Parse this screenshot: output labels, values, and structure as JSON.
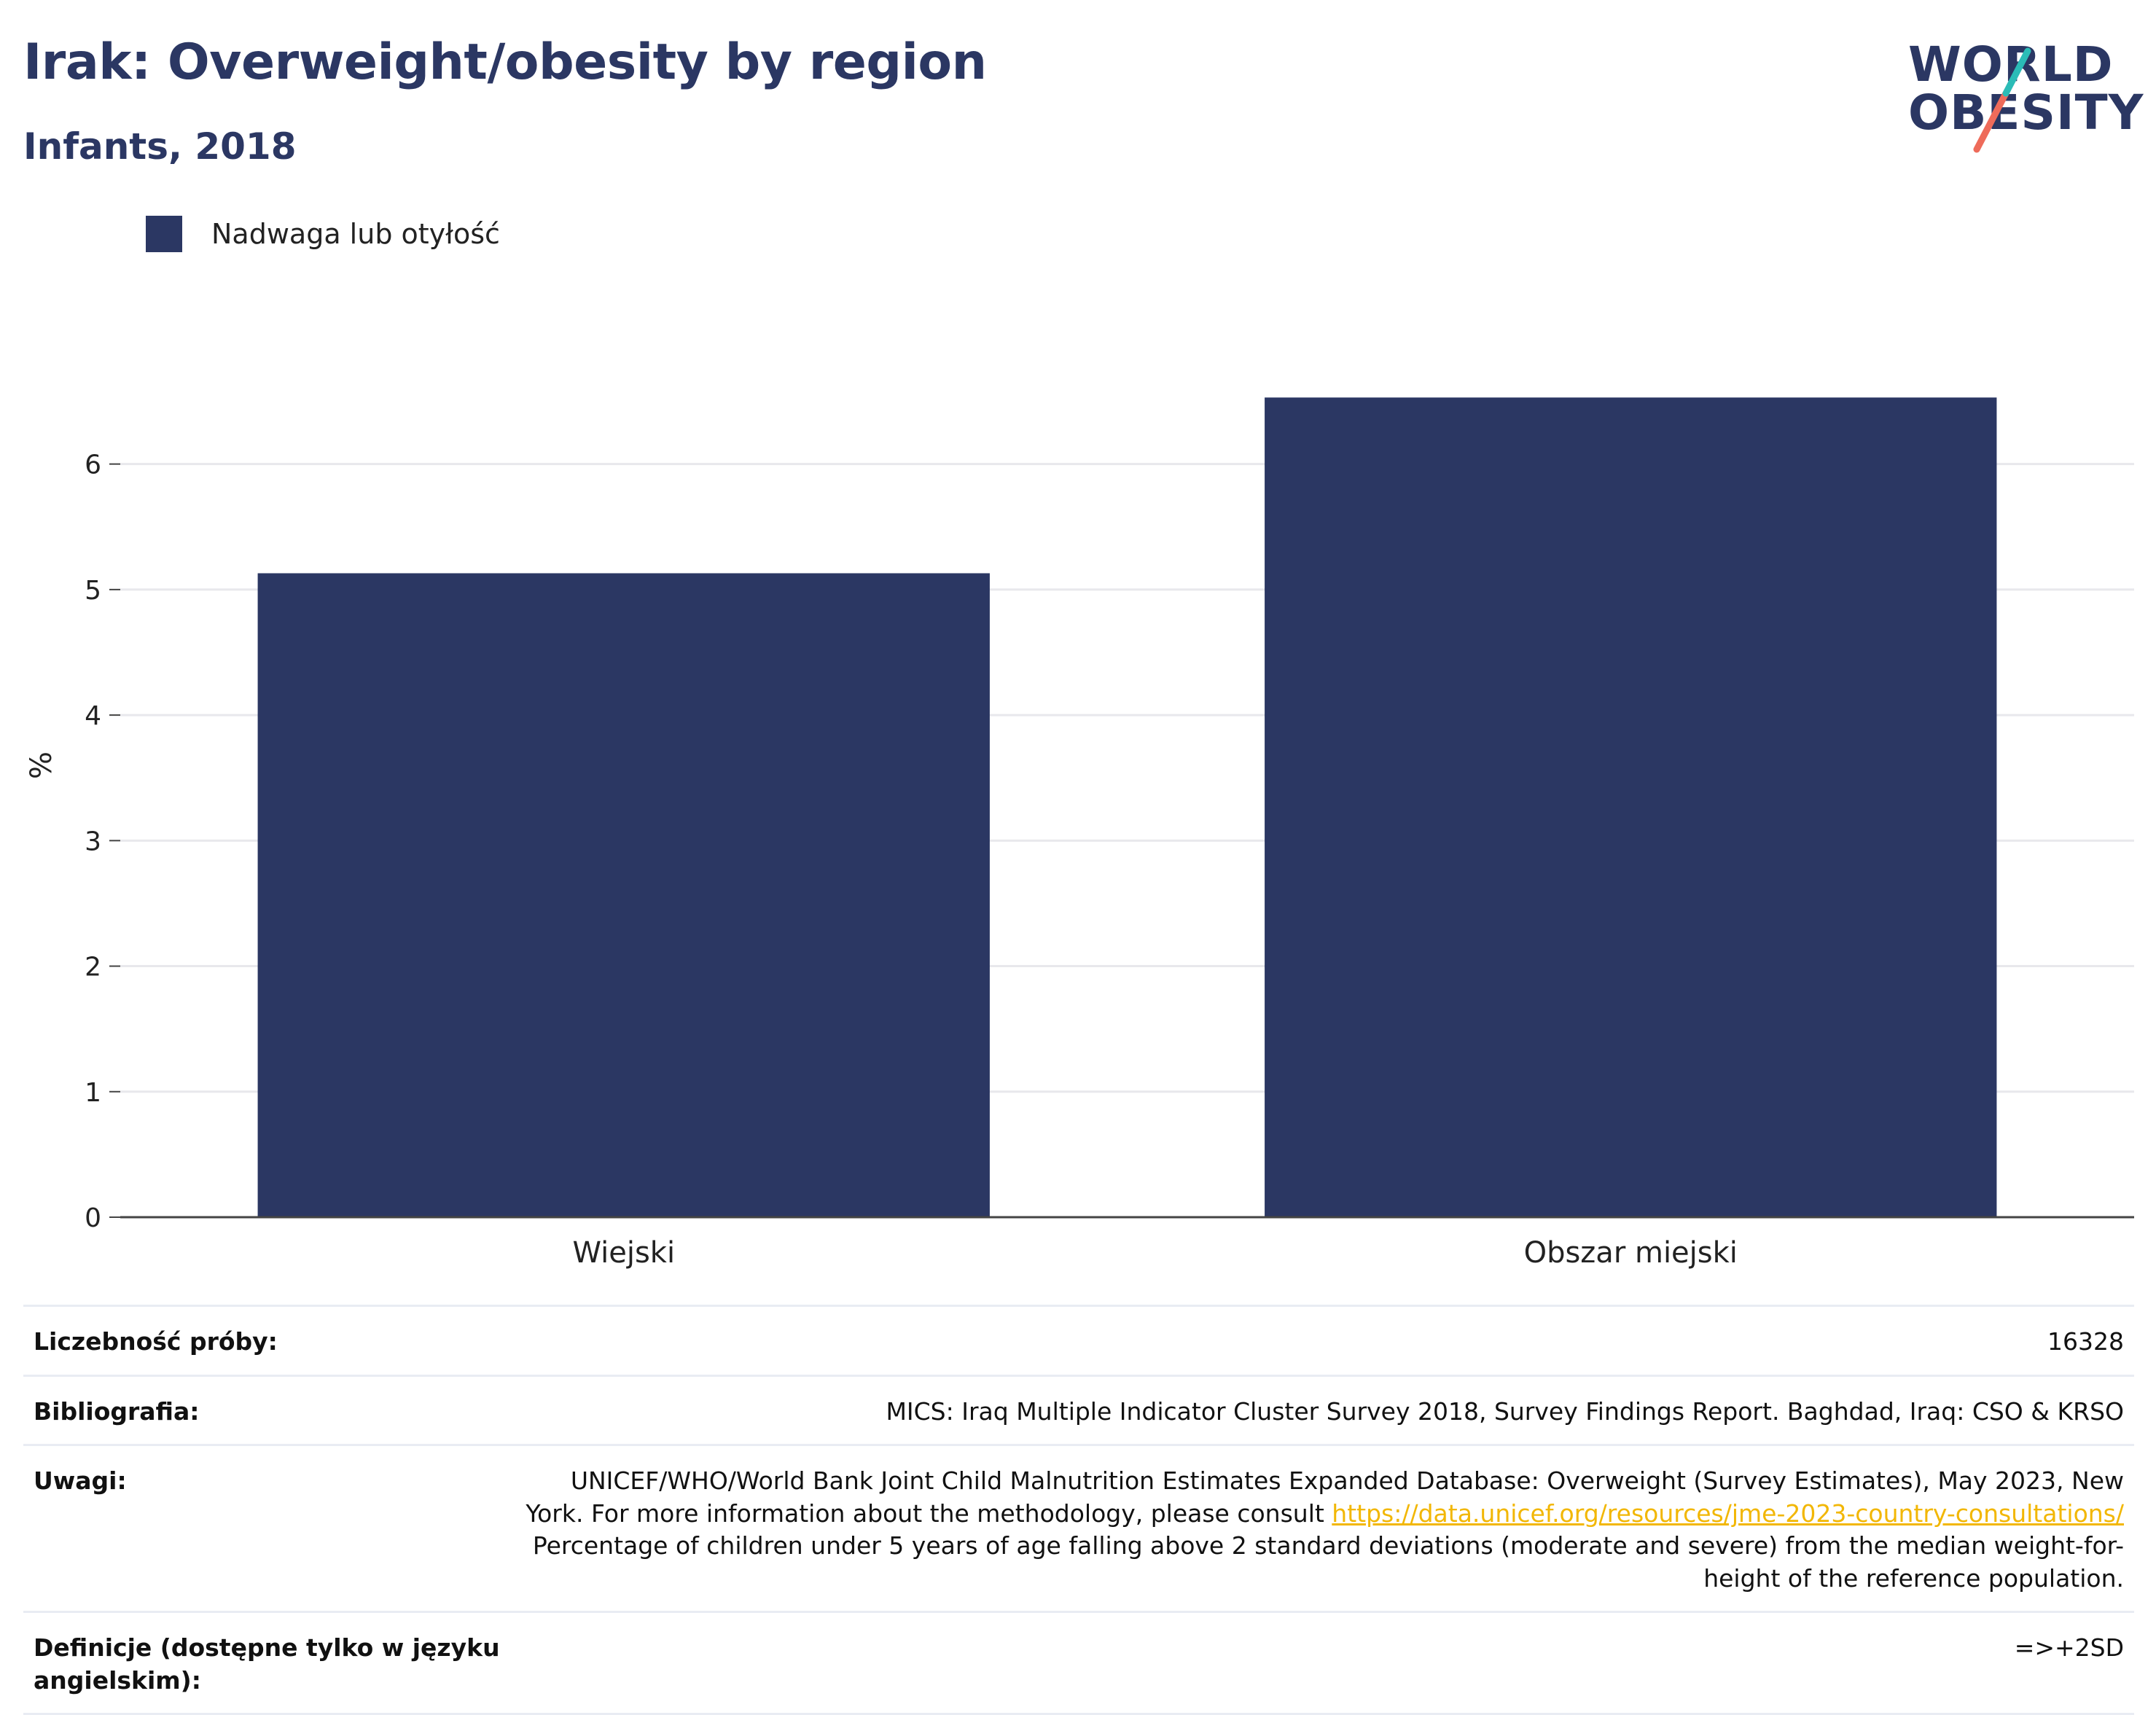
{
  "header": {
    "title": "Irak: Overweight/obesity by region",
    "subtitle": "Infants, 2018"
  },
  "logo": {
    "line1": "WORLD",
    "line2": "OBESITY",
    "colors": {
      "text": "#2b3763",
      "slash_top": "#2bbcb7",
      "slash_bottom": "#ee6b5a"
    }
  },
  "legend": {
    "label": "Nadwaga lub otyłość",
    "color": "#2b3763"
  },
  "chart_data": {
    "type": "bar",
    "categories": [
      "Wiejski",
      "Obszar miejski"
    ],
    "series": [
      {
        "name": "Nadwaga lub otyłość",
        "values": [
          5.13,
          6.53
        ]
      }
    ],
    "ylabel": "%",
    "xlabel": "",
    "ylim": [
      0,
      7.2
    ],
    "yticks": [
      0,
      1,
      2,
      3,
      4,
      5,
      6
    ],
    "grid": true,
    "bar_color": "#2b3763",
    "legend_position": "top-left"
  },
  "info": {
    "rows": [
      {
        "key": "Liczebność próby:",
        "value": "16328"
      },
      {
        "key": "Bibliografia:",
        "value": "MICS: Iraq Multiple Indicator Cluster Survey 2018, Survey Findings Report. Baghdad, Iraq: CSO & KRSO"
      },
      {
        "key": "Uwagi:",
        "value_part1": "UNICEF/WHO/World Bank Joint Child Malnutrition Estimates Expanded Database: Overweight (Survey Estimates), May 2023, New York. For more information about the methodology, please consult ",
        "link": "https://data.unicef.org/resources/jme-2023-country-consultations/",
        "value_part2": " Percentage of children under 5 years of age falling above 2 standard deviations (moderate and severe) from the median weight-for-height of the reference population."
      },
      {
        "key": "Definicje (dostępne tylko w języku angielskim):",
        "value": "=>+2SD"
      }
    ],
    "link_color": "#f2b705"
  }
}
